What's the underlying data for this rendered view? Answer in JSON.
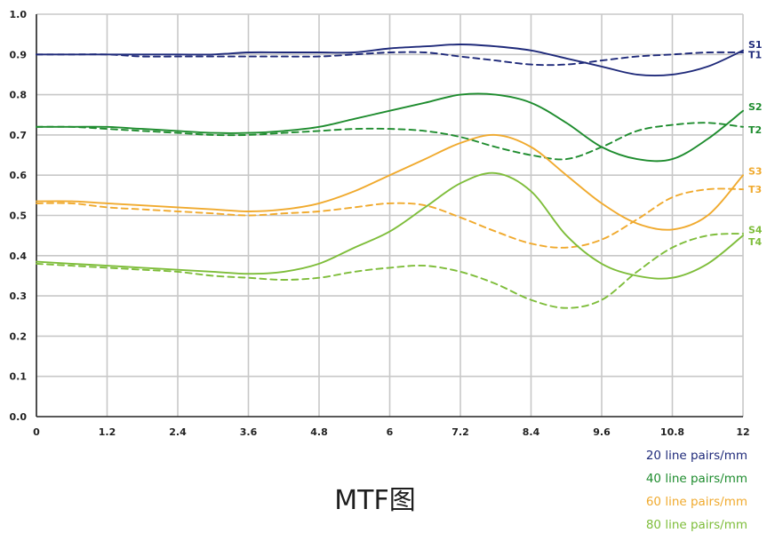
{
  "chart_data": {
    "type": "line",
    "title": "MTF图",
    "xlim": [
      0,
      12
    ],
    "ylim": [
      0,
      1.0
    ],
    "x_ticks": [
      "0",
      "1.2",
      "2.4",
      "3.6",
      "4.8",
      "6",
      "7.2",
      "8.4",
      "9.6",
      "10.8",
      "12"
    ],
    "x_tick_values": [
      0,
      1.2,
      2.4,
      3.6,
      4.8,
      6,
      7.2,
      8.4,
      9.6,
      10.8,
      12
    ],
    "y_ticks": [
      "0.0",
      "0.1",
      "0.2",
      "0.3",
      "0.4",
      "0.5",
      "0.6",
      "0.7",
      "0.8",
      "0.9",
      "1.0"
    ],
    "y_tick_values": [
      0,
      0.1,
      0.2,
      0.3,
      0.4,
      0.5,
      0.6,
      0.7,
      0.8,
      0.9,
      1.0
    ],
    "grid": true,
    "legend": {
      "placement": "bottom-right",
      "entries": [
        {
          "label": "20 line pairs/mm",
          "color": "#1f2a7a"
        },
        {
          "label": "40 line pairs/mm",
          "color": "#1e8c2e"
        },
        {
          "label": "60 line pairs/mm",
          "color": "#f0aa2e"
        },
        {
          "label": "80 line pairs/mm",
          "color": "#7ebd3a"
        }
      ]
    },
    "x": [
      0,
      0.6,
      1.2,
      1.8,
      2.4,
      3.0,
      3.6,
      4.2,
      4.8,
      5.4,
      6.0,
      6.6,
      7.2,
      7.8,
      8.4,
      9.0,
      9.6,
      10.2,
      10.8,
      11.4,
      12.0
    ],
    "series": [
      {
        "name": "S1",
        "color": "#1f2a7a",
        "dash": false,
        "values": [
          0.9,
          0.9,
          0.9,
          0.9,
          0.9,
          0.9,
          0.905,
          0.905,
          0.905,
          0.905,
          0.915,
          0.92,
          0.925,
          0.92,
          0.91,
          0.89,
          0.87,
          0.85,
          0.85,
          0.87,
          0.91
        ]
      },
      {
        "name": "T1",
        "color": "#1f2a7a",
        "dash": true,
        "values": [
          0.9,
          0.9,
          0.9,
          0.895,
          0.895,
          0.895,
          0.895,
          0.895,
          0.895,
          0.9,
          0.905,
          0.905,
          0.895,
          0.885,
          0.875,
          0.875,
          0.885,
          0.895,
          0.9,
          0.905,
          0.905
        ]
      },
      {
        "name": "S2",
        "color": "#1e8c2e",
        "dash": false,
        "values": [
          0.72,
          0.72,
          0.72,
          0.715,
          0.71,
          0.705,
          0.705,
          0.71,
          0.72,
          0.74,
          0.76,
          0.78,
          0.8,
          0.8,
          0.78,
          0.73,
          0.67,
          0.64,
          0.64,
          0.69,
          0.76
        ]
      },
      {
        "name": "T2",
        "color": "#1e8c2e",
        "dash": true,
        "values": [
          0.72,
          0.72,
          0.715,
          0.71,
          0.705,
          0.7,
          0.7,
          0.705,
          0.71,
          0.715,
          0.715,
          0.71,
          0.695,
          0.67,
          0.65,
          0.64,
          0.67,
          0.71,
          0.725,
          0.73,
          0.72
        ]
      },
      {
        "name": "S3",
        "color": "#f0aa2e",
        "dash": false,
        "values": [
          0.535,
          0.535,
          0.53,
          0.525,
          0.52,
          0.515,
          0.51,
          0.515,
          0.53,
          0.56,
          0.6,
          0.64,
          0.68,
          0.7,
          0.67,
          0.6,
          0.53,
          0.48,
          0.465,
          0.5,
          0.6
        ]
      },
      {
        "name": "T3",
        "color": "#f0aa2e",
        "dash": true,
        "values": [
          0.53,
          0.53,
          0.52,
          0.515,
          0.51,
          0.505,
          0.5,
          0.505,
          0.51,
          0.52,
          0.53,
          0.525,
          0.495,
          0.46,
          0.43,
          0.42,
          0.44,
          0.49,
          0.545,
          0.565,
          0.565
        ]
      },
      {
        "name": "S4",
        "color": "#7ebd3a",
        "dash": false,
        "values": [
          0.385,
          0.38,
          0.375,
          0.37,
          0.365,
          0.36,
          0.355,
          0.36,
          0.38,
          0.42,
          0.46,
          0.52,
          0.58,
          0.605,
          0.56,
          0.45,
          0.38,
          0.35,
          0.345,
          0.38,
          0.45
        ]
      },
      {
        "name": "T4",
        "color": "#7ebd3a",
        "dash": true,
        "values": [
          0.38,
          0.375,
          0.37,
          0.365,
          0.36,
          0.35,
          0.345,
          0.34,
          0.345,
          0.36,
          0.37,
          0.375,
          0.36,
          0.33,
          0.29,
          0.27,
          0.29,
          0.36,
          0.42,
          0.45,
          0.455
        ]
      }
    ],
    "series_labels": [
      {
        "text": "S1",
        "color": "#1f2a7a",
        "y": 0.925
      },
      {
        "text": "T1",
        "color": "#1f2a7a",
        "y": 0.9
      },
      {
        "text": "S2",
        "color": "#1e8c2e",
        "y": 0.77
      },
      {
        "text": "T2",
        "color": "#1e8c2e",
        "y": 0.713
      },
      {
        "text": "S3",
        "color": "#f0aa2e",
        "y": 0.61
      },
      {
        "text": "T3",
        "color": "#f0aa2e",
        "y": 0.565
      },
      {
        "text": "S4",
        "color": "#7ebd3a",
        "y": 0.465
      },
      {
        "text": "T4",
        "color": "#7ebd3a",
        "y": 0.435
      }
    ]
  }
}
